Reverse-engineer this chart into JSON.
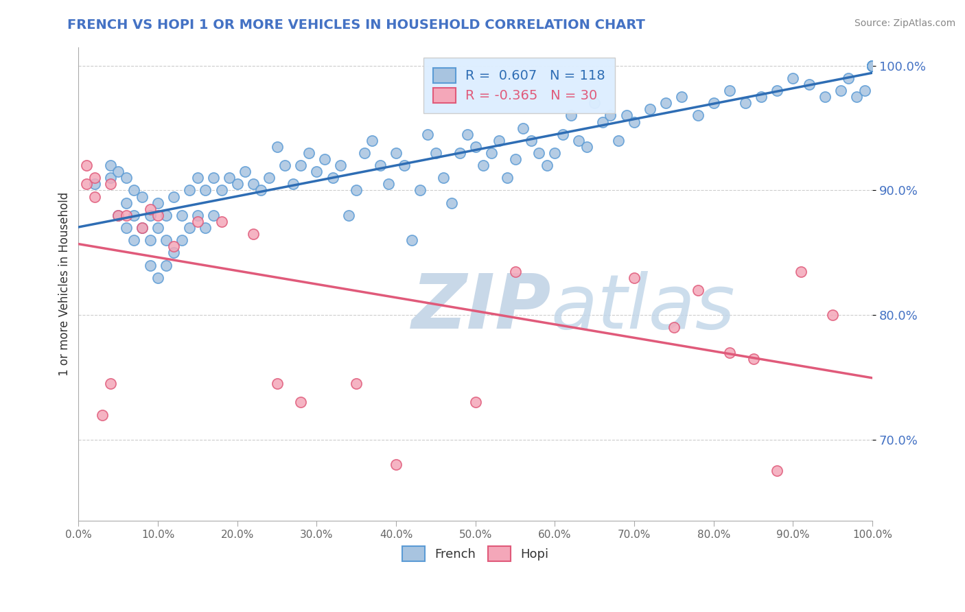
{
  "title": "FRENCH VS HOPI 1 OR MORE VEHICLES IN HOUSEHOLD CORRELATION CHART",
  "source": "Source: ZipAtlas.com",
  "ylabel": "1 or more Vehicles in Household",
  "ytick_labels": [
    "70.0%",
    "80.0%",
    "90.0%",
    "100.0%"
  ],
  "ytick_values": [
    0.7,
    0.8,
    0.9,
    1.0
  ],
  "xtick_labels": [
    "0.0%",
    "10.0%",
    "20.0%",
    "30.0%",
    "40.0%",
    "50.0%",
    "60.0%",
    "70.0%",
    "80.0%",
    "90.0%",
    "100.0%"
  ],
  "xtick_values": [
    0.0,
    0.1,
    0.2,
    0.3,
    0.4,
    0.5,
    0.6,
    0.7,
    0.8,
    0.9,
    1.0
  ],
  "xlim": [
    0.0,
    1.0
  ],
  "ylim": [
    0.635,
    1.015
  ],
  "french_R": 0.607,
  "french_N": 118,
  "hopi_R": -0.365,
  "hopi_N": 30,
  "french_color": "#a8c4e0",
  "french_edge_color": "#5b9bd5",
  "hopi_color": "#f4a7b9",
  "hopi_edge_color": "#e05a7a",
  "trend_french_color": "#2e6db4",
  "trend_hopi_color": "#e05a7a",
  "watermark_color": "#c8d8e8",
  "legend_box_color": "#ddeeff",
  "french_x": [
    0.02,
    0.04,
    0.04,
    0.05,
    0.05,
    0.06,
    0.06,
    0.06,
    0.07,
    0.07,
    0.07,
    0.08,
    0.08,
    0.09,
    0.09,
    0.09,
    0.1,
    0.1,
    0.1,
    0.11,
    0.11,
    0.11,
    0.12,
    0.12,
    0.13,
    0.13,
    0.14,
    0.14,
    0.15,
    0.15,
    0.16,
    0.16,
    0.17,
    0.17,
    0.18,
    0.19,
    0.2,
    0.21,
    0.22,
    0.23,
    0.24,
    0.25,
    0.26,
    0.27,
    0.28,
    0.29,
    0.3,
    0.31,
    0.32,
    0.33,
    0.34,
    0.35,
    0.36,
    0.37,
    0.38,
    0.39,
    0.4,
    0.41,
    0.42,
    0.43,
    0.44,
    0.45,
    0.46,
    0.47,
    0.48,
    0.49,
    0.5,
    0.51,
    0.52,
    0.53,
    0.54,
    0.55,
    0.56,
    0.57,
    0.58,
    0.59,
    0.6,
    0.61,
    0.62,
    0.63,
    0.64,
    0.65,
    0.66,
    0.67,
    0.68,
    0.69,
    0.7,
    0.72,
    0.74,
    0.76,
    0.78,
    0.8,
    0.82,
    0.84,
    0.86,
    0.88,
    0.9,
    0.92,
    0.94,
    0.96,
    0.97,
    0.98,
    0.99,
    1.0,
    1.0,
    1.0,
    1.0,
    1.0,
    1.0,
    1.0,
    1.0,
    1.0,
    1.0,
    1.0,
    1.0,
    1.0,
    1.0,
    1.0,
    1.0,
    1.0
  ],
  "french_y": [
    0.905,
    0.91,
    0.92,
    0.88,
    0.915,
    0.87,
    0.89,
    0.91,
    0.86,
    0.88,
    0.9,
    0.87,
    0.895,
    0.84,
    0.86,
    0.88,
    0.83,
    0.87,
    0.89,
    0.84,
    0.86,
    0.88,
    0.85,
    0.895,
    0.86,
    0.88,
    0.87,
    0.9,
    0.88,
    0.91,
    0.87,
    0.9,
    0.88,
    0.91,
    0.9,
    0.91,
    0.905,
    0.915,
    0.905,
    0.9,
    0.91,
    0.935,
    0.92,
    0.905,
    0.92,
    0.93,
    0.915,
    0.925,
    0.91,
    0.92,
    0.88,
    0.9,
    0.93,
    0.94,
    0.92,
    0.905,
    0.93,
    0.92,
    0.86,
    0.9,
    0.945,
    0.93,
    0.91,
    0.89,
    0.93,
    0.945,
    0.935,
    0.92,
    0.93,
    0.94,
    0.91,
    0.925,
    0.95,
    0.94,
    0.93,
    0.92,
    0.93,
    0.945,
    0.96,
    0.94,
    0.935,
    0.97,
    0.955,
    0.96,
    0.94,
    0.96,
    0.955,
    0.965,
    0.97,
    0.975,
    0.96,
    0.97,
    0.98,
    0.97,
    0.975,
    0.98,
    0.99,
    0.985,
    0.975,
    0.98,
    0.99,
    0.975,
    0.98,
    1.0,
    1.0,
    1.0,
    1.0,
    1.0,
    1.0,
    1.0,
    1.0,
    1.0,
    1.0,
    1.0,
    1.0,
    1.0,
    1.0,
    1.0,
    1.0,
    1.0
  ],
  "hopi_x": [
    0.01,
    0.01,
    0.02,
    0.02,
    0.03,
    0.04,
    0.04,
    0.05,
    0.06,
    0.08,
    0.09,
    0.1,
    0.12,
    0.15,
    0.18,
    0.22,
    0.25,
    0.28,
    0.35,
    0.4,
    0.5,
    0.55,
    0.7,
    0.75,
    0.78,
    0.82,
    0.85,
    0.88,
    0.91,
    0.95
  ],
  "hopi_y": [
    0.905,
    0.92,
    0.895,
    0.91,
    0.72,
    0.745,
    0.905,
    0.88,
    0.88,
    0.87,
    0.885,
    0.88,
    0.855,
    0.875,
    0.875,
    0.865,
    0.745,
    0.73,
    0.745,
    0.68,
    0.73,
    0.835,
    0.83,
    0.79,
    0.82,
    0.77,
    0.765,
    0.675,
    0.835,
    0.8
  ],
  "background_color": "#ffffff",
  "grid_color": "#cccccc",
  "dot_size": 120
}
